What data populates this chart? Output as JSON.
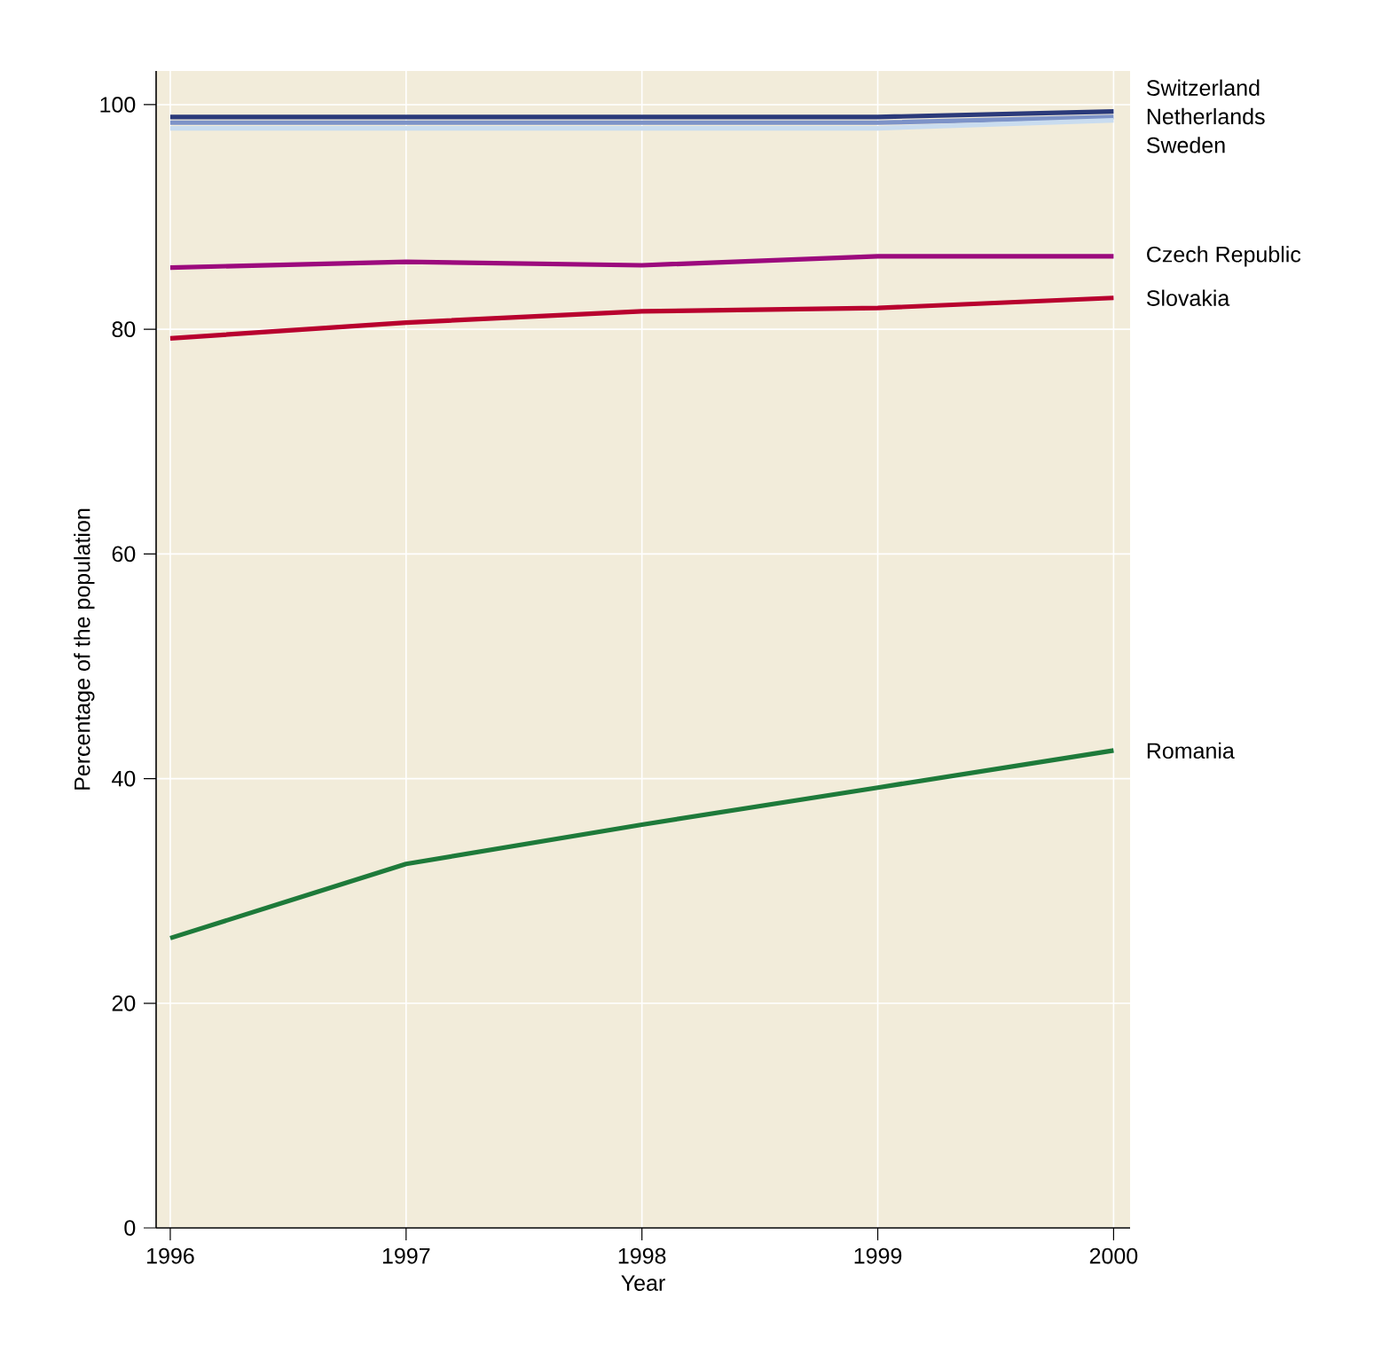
{
  "chart_data": {
    "type": "line",
    "xlabel": "Year",
    "ylabel": "Percentage of the population",
    "x": [
      1996,
      1997,
      1998,
      1999,
      2000
    ],
    "xlim": [
      1995.94,
      2000.07
    ],
    "ylim": [
      0,
      103
    ],
    "xticks": [
      1996,
      1997,
      1998,
      1999,
      2000
    ],
    "yticks": [
      0,
      20,
      40,
      60,
      80,
      100
    ],
    "grid": true,
    "series": [
      {
        "name": "Switzerland",
        "color": "#2b3a7a",
        "values": [
          98.9,
          98.9,
          98.9,
          98.9,
          99.4
        ]
      },
      {
        "name": "Netherlands",
        "color": "#7d93c8",
        "values": [
          98.4,
          98.4,
          98.4,
          98.4,
          98.9
        ]
      },
      {
        "name": "Sweden",
        "color": "#c9dcef",
        "values": [
          97.9,
          97.9,
          97.9,
          97.9,
          98.6
        ]
      },
      {
        "name": "Czech Republic",
        "color": "#9c0a7d",
        "values": [
          85.5,
          86.0,
          85.7,
          86.5,
          86.5
        ]
      },
      {
        "name": "Slovakia",
        "color": "#b8002e",
        "values": [
          79.2,
          80.6,
          81.6,
          81.9,
          82.8
        ]
      },
      {
        "name": "Romania",
        "color": "#1e7a3a",
        "values": [
          25.8,
          32.4,
          35.9,
          39.2,
          42.5
        ]
      }
    ]
  }
}
